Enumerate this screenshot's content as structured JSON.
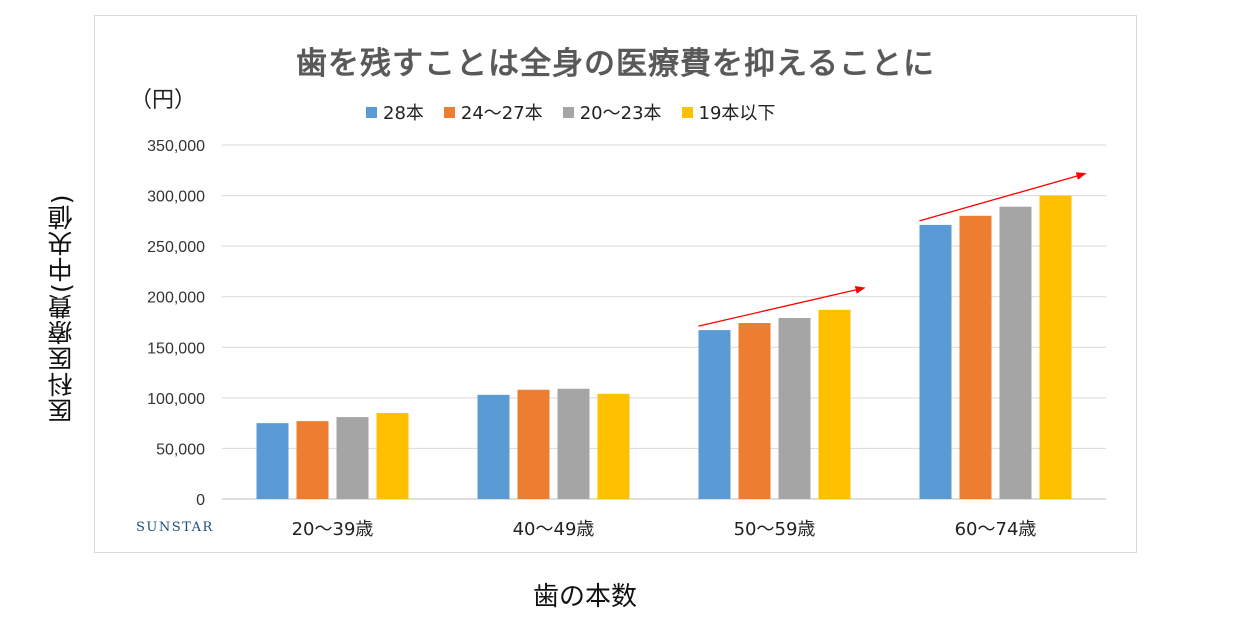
{
  "chart_data": {
    "type": "bar",
    "title": "歯を残すことは全身の医療費を抑えることに",
    "unit_label": "（円）",
    "xlabel": "歯の本数",
    "ylabel": "医科医療費(中央値)",
    "categories": [
      "20〜39歳",
      "40〜49歳",
      "50〜59歳",
      "60〜74歳"
    ],
    "series": [
      {
        "name": "28本",
        "color": "#5b9bd5",
        "values": [
          75000,
          103000,
          167000,
          271000
        ]
      },
      {
        "name": "24〜27本",
        "color": "#ed7d31",
        "values": [
          77000,
          108000,
          174000,
          280000
        ]
      },
      {
        "name": "20〜23本",
        "color": "#a5a5a5",
        "values": [
          81000,
          109000,
          179000,
          289000
        ]
      },
      {
        "name": "19本以下",
        "color": "#ffc000",
        "values": [
          85000,
          104000,
          187000,
          300000
        ]
      }
    ],
    "ylim": [
      0,
      350000
    ],
    "yticks": [
      0,
      50000,
      100000,
      150000,
      200000,
      250000,
      300000,
      350000
    ],
    "ytick_labels": [
      "0",
      "50,000",
      "100,000",
      "150,000",
      "200,000",
      "250,000",
      "300,000",
      "350,000"
    ],
    "grid": true,
    "legend_position": "top-center",
    "annotations": [
      "trend arrow over 50〜59歳 group",
      "trend arrow over 60〜74歳 group"
    ],
    "arrow_color": "#ff0000"
  },
  "brand": {
    "logo_text": "SUNSTAR",
    "color": "#1c4e7c"
  }
}
